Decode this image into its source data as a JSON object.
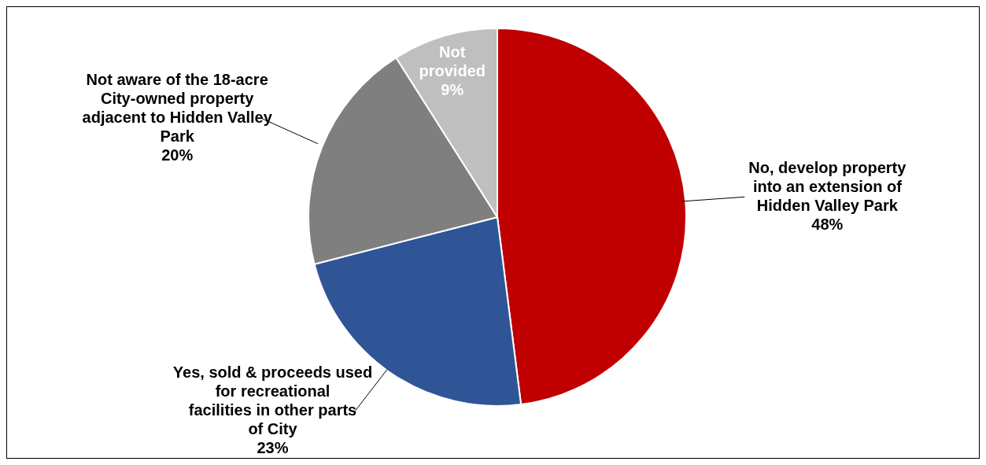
{
  "chart_data": {
    "type": "pie",
    "categories": [
      "No, develop property into an extension of Hidden Valley Park",
      "Yes, sold & proceeds used for recreational facilities in other parts of City",
      "Not aware of the 18-acre City-owned property adjacent to Hidden Valley Park",
      "Not provided"
    ],
    "values": [
      48,
      23,
      20,
      9
    ],
    "colors": [
      "#c00000",
      "#2f5597",
      "#7f7f7f",
      "#bfbfbf"
    ],
    "value_labels": [
      "48%",
      "23%",
      "20%",
      "9%"
    ],
    "legend": false
  }
}
